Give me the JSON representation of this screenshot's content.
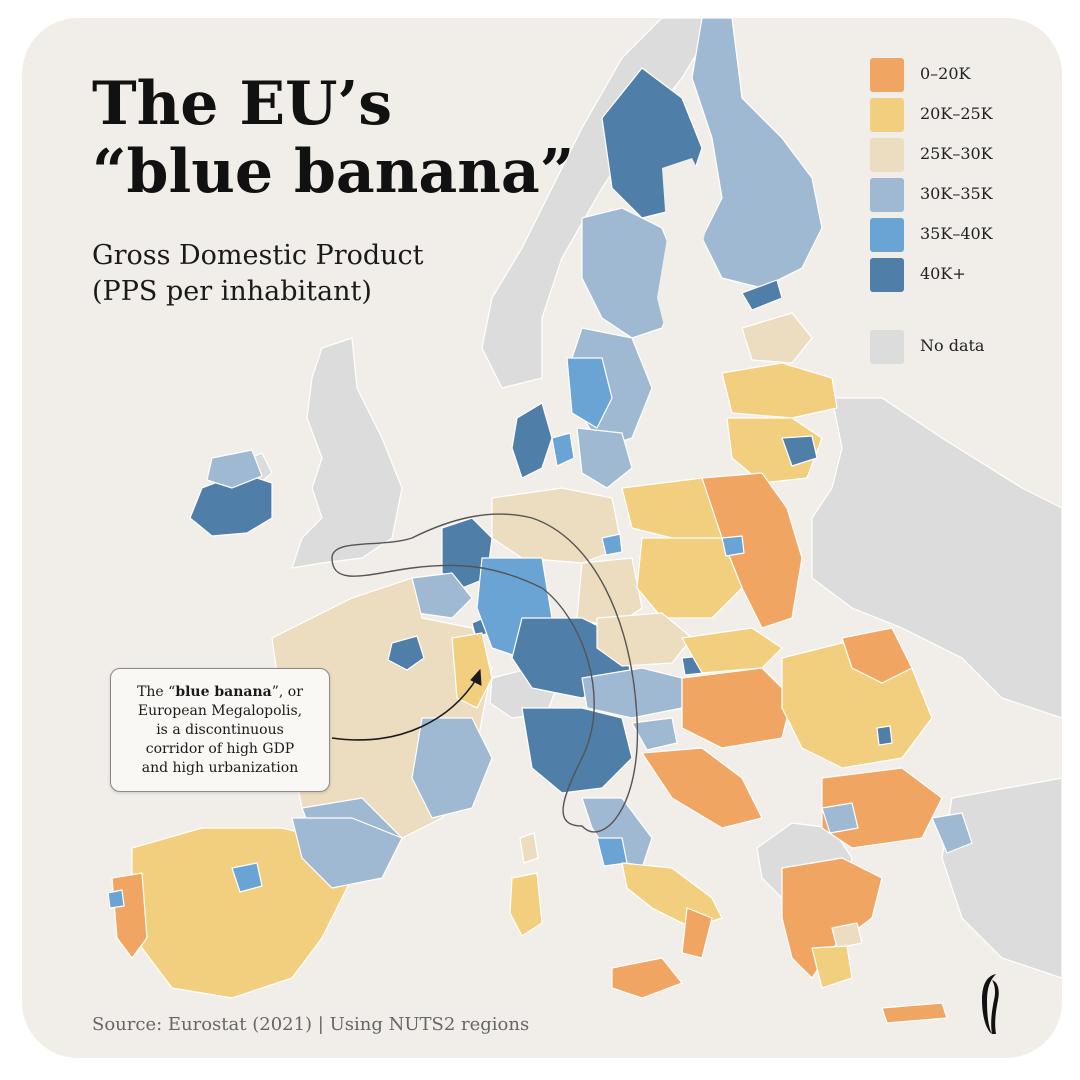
{
  "title": {
    "line1": "The EU’s",
    "line2": "“blue banana”"
  },
  "subtitle": {
    "line1": "Gross Domestic Product",
    "line2": "(PPS per inhabitant)"
  },
  "legend": {
    "items": [
      {
        "label": "0–20K",
        "color": "#f0a662"
      },
      {
        "label": "20K–25K",
        "color": "#f2cf7f"
      },
      {
        "label": "25K–30K",
        "color": "#ecdcc0"
      },
      {
        "label": "30K–35K",
        "color": "#9fb9d3"
      },
      {
        "label": "35K–40K",
        "color": "#6aa4d4"
      },
      {
        "label": "40K+",
        "color": "#4f7fa8"
      }
    ],
    "no_data": {
      "label": "No data",
      "color": "#dcdcdc"
    }
  },
  "callout": {
    "prefix": "The “",
    "highlight": "blue banana",
    "suffix": "”, or",
    "line2": "European Megalopolis,",
    "line3": "is a discontinuous",
    "line4": "corridor of high GDP",
    "line5": "and high urbanization"
  },
  "source": "Source: Eurostat (2021) | Using NUTS2 regions",
  "colors": {
    "background": "#f1eee9",
    "no_data_land": "#dcdcdc",
    "outline": "#555555"
  },
  "logo": {
    "icon": "brand-logo-icon"
  }
}
